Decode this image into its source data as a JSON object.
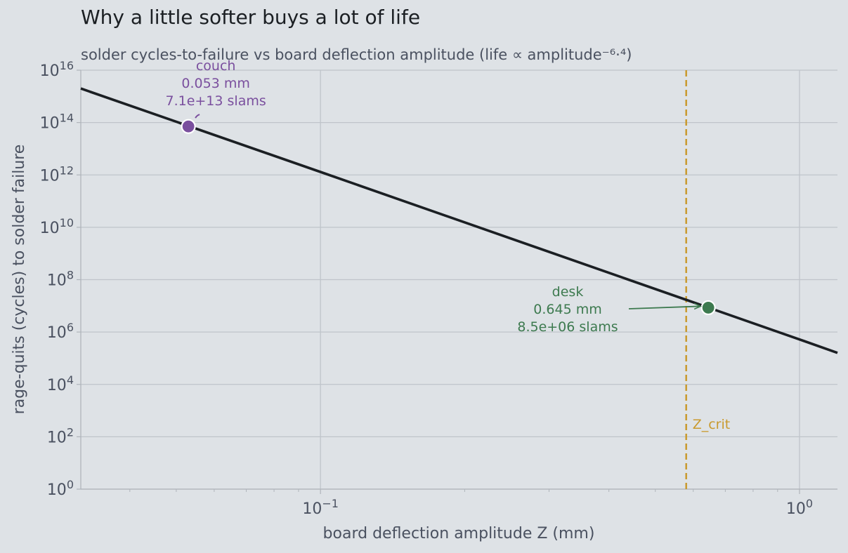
{
  "title": "Why a little softer buys a lot of life",
  "subtitle": "solder cycles-to-failure vs board deflection amplitude  (life ∝ amplitude⁻⁶·⁴)",
  "chart_data": {
    "type": "line",
    "xlabel": "board deflection amplitude  Z  (mm)",
    "ylabel": "rage-quits (cycles) to solder failure",
    "x_scale": "log",
    "y_scale": "log",
    "xlim": [
      0.0316,
      1.2
    ],
    "ylim": [
      1,
      1e+16
    ],
    "grid": true,
    "x_ticks": [
      {
        "value": 0.1,
        "base": "10",
        "exp": "−1"
      },
      {
        "value": 1,
        "base": "10",
        "exp": "0"
      }
    ],
    "y_ticks": [
      {
        "value": 1,
        "base": "10",
        "exp": "0"
      },
      {
        "value": 100,
        "base": "10",
        "exp": "2"
      },
      {
        "value": 10000,
        "base": "10",
        "exp": "4"
      },
      {
        "value": 1000000,
        "base": "10",
        "exp": "6"
      },
      {
        "value": 100000000,
        "base": "10",
        "exp": "8"
      },
      {
        "value": 10000000000,
        "base": "10",
        "exp": "10"
      },
      {
        "value": 1000000000000,
        "base": "10",
        "exp": "12"
      },
      {
        "value": 100000000000000,
        "base": "10",
        "exp": "14"
      },
      {
        "value": 10000000000000000,
        "base": "10",
        "exp": "16"
      }
    ],
    "series": [
      {
        "x": [
          0.0316,
          0.1,
          1.0,
          1.2
        ],
        "y": [
          2000000000000000.0,
          1300000000000.0,
          520000.0,
          160000.0
        ],
        "color": "#1b1f23"
      }
    ],
    "points": [
      {
        "label": "couch",
        "x": 0.053,
        "y": 71000000000000.0,
        "color": "#7a4f9e",
        "lines": [
          "couch",
          "0.053 mm",
          "7.1e+13 slams"
        ]
      },
      {
        "label": "desk",
        "x": 0.645,
        "y": 8500000.0,
        "color": "#3d7a4f",
        "lines": [
          "desk",
          "0.645 mm",
          "8.5e+06 slams"
        ]
      }
    ],
    "vline": {
      "x": 0.58,
      "label": "Z_crit",
      "color": "#c99a2e"
    }
  }
}
